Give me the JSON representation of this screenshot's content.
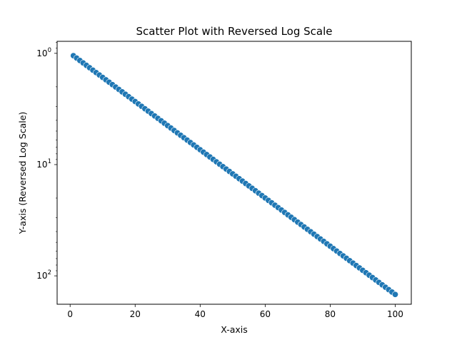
{
  "chart_data": {
    "type": "scatter",
    "title": "Scatter Plot with Reversed Log Scale",
    "xlabel": "X-axis",
    "ylabel": "Y-axis (Reversed Log Scale)",
    "x_scale": "linear",
    "y_scale": "log",
    "y_reversed": true,
    "xlim": [
      -4.0,
      104.95
    ],
    "ylim": [
      0.78,
      180
    ],
    "x_ticks": [
      {
        "value": 0,
        "label": "0"
      },
      {
        "value": 20,
        "label": "20"
      },
      {
        "value": 40,
        "label": "40"
      },
      {
        "value": 60,
        "label": "60"
      },
      {
        "value": 80,
        "label": "80"
      },
      {
        "value": 100,
        "label": "100"
      }
    ],
    "y_ticks": [
      {
        "value": 1,
        "base": "10",
        "exp": "0"
      },
      {
        "value": 10,
        "base": "10",
        "exp": "1"
      },
      {
        "value": 100,
        "base": "10",
        "exp": "2"
      }
    ],
    "grid": false,
    "marker_color": "#1f77b4",
    "marker_edge_color": "#ffffff",
    "x_range": [
      1,
      100
    ],
    "y_range": [
      1.05,
      147
    ],
    "point_count": 100
  }
}
